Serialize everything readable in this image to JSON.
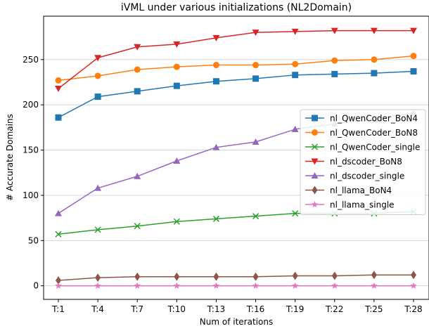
{
  "chart_data": {
    "type": "line",
    "title": "iVML under various initializations (NL2Domain)",
    "xlabel": "Num of iterations",
    "ylabel": "# Accurate Domains",
    "categories": [
      "T:1",
      "T:4",
      "T:7",
      "T:10",
      "T:13",
      "T:16",
      "T:19",
      "T:22",
      "T:25",
      "T:28"
    ],
    "ylim": [
      -15,
      298
    ],
    "yticks": [
      0,
      50,
      100,
      150,
      200,
      250
    ],
    "grid": "horizontal",
    "legend_position": "right",
    "series": [
      {
        "name": "nl_QwenCoder_BoN4",
        "color": "#1f77b4",
        "marker": "square",
        "values": [
          186,
          209,
          215,
          221,
          226,
          229,
          233,
          234,
          235,
          237
        ]
      },
      {
        "name": "nl_QwenCoder_BoN8",
        "color": "#ff7f0e",
        "marker": "circle",
        "values": [
          227,
          232,
          239,
          242,
          244,
          244,
          245,
          249,
          250,
          254
        ]
      },
      {
        "name": "nl_QwenCoder_single",
        "color": "#2ca02c",
        "marker": "x",
        "values": [
          57,
          62,
          66,
          71,
          74,
          77,
          80,
          80,
          80,
          82
        ]
      },
      {
        "name": "nl_dscoder_BoN8",
        "color": "#d62728",
        "marker": "triangle-down",
        "values": [
          218,
          252,
          264,
          267,
          274,
          280,
          281,
          282,
          282,
          282
        ]
      },
      {
        "name": "nl_dscoder_single",
        "color": "#9467bd",
        "marker": "triangle-up",
        "values": [
          80,
          108,
          121,
          138,
          153,
          159,
          173,
          179,
          184,
          191
        ]
      },
      {
        "name": "nl_llama_BoN4",
        "color": "#8c564b",
        "marker": "diamond",
        "values": [
          6,
          9,
          10,
          10,
          10,
          10,
          11,
          11,
          12,
          12
        ]
      },
      {
        "name": "nl_llama_single",
        "color": "#e377c2",
        "marker": "star",
        "values": [
          0,
          0,
          0,
          0,
          0,
          0,
          0,
          0,
          0,
          0
        ]
      }
    ]
  }
}
